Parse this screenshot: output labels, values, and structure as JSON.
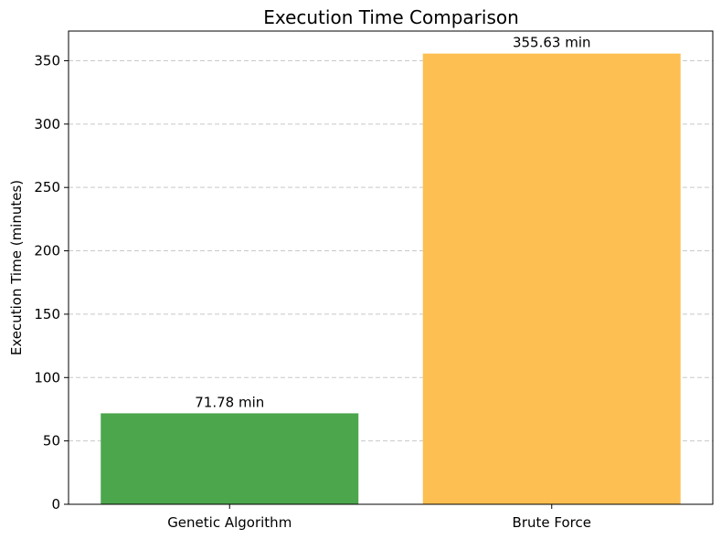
{
  "chart_data": {
    "type": "bar",
    "title": "Execution Time Comparison",
    "xlabel": "",
    "ylabel": "Execution Time (minutes)",
    "categories": [
      "Genetic Algorithm",
      "Brute Force"
    ],
    "values": [
      71.78,
      355.63
    ],
    "data_labels": [
      "71.78 min",
      "355.63 min"
    ],
    "colors": [
      "#4ca64c",
      "#fdbf51"
    ],
    "ylim": [
      0,
      373.4
    ],
    "yticks": [
      0,
      50,
      100,
      150,
      200,
      250,
      300,
      350
    ],
    "ytick_labels": [
      "0",
      "50",
      "100",
      "150",
      "200",
      "250",
      "300",
      "350"
    ],
    "grid": "y-dashed",
    "grid_color": "#c8c8c8"
  }
}
